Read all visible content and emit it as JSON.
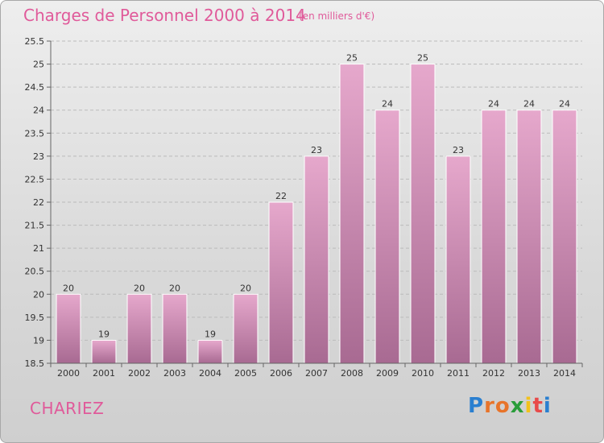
{
  "header": {
    "title": "Charges de Personnel 2000 à 2014",
    "subtitle": "(en milliers d'€)"
  },
  "footer": {
    "commune": "CHARIEZ",
    "logo": "Proxiti",
    "logo_colors": [
      "#2a7fd0",
      "#e8742a",
      "#e8742a",
      "#2a9d3a",
      "#f2c21d",
      "#e84a4a",
      "#2a7fd0"
    ]
  },
  "chart_data": {
    "type": "bar",
    "categories": [
      "2000",
      "2001",
      "2002",
      "2003",
      "2004",
      "2005",
      "2006",
      "2007",
      "2008",
      "2009",
      "2010",
      "2011",
      "2012",
      "2013",
      "2014"
    ],
    "values": [
      20,
      19,
      20,
      20,
      19,
      20,
      22,
      23,
      25,
      24,
      25,
      23,
      24,
      24,
      24
    ],
    "value_labels": [
      "20",
      "19",
      "20",
      "20",
      "19",
      "20",
      "22",
      "23",
      "25",
      "24",
      "25",
      "23",
      "24",
      "24",
      "24"
    ],
    "ylim": [
      18.5,
      25.5
    ],
    "yticks": [
      "18.5",
      "19",
      "19.5",
      "20",
      "20.5",
      "21",
      "21.5",
      "22",
      "22.5",
      "23",
      "23.5",
      "24",
      "24.5",
      "25",
      "25.5"
    ],
    "bar_color_top": "#e6a8cc",
    "bar_color_bottom": "#a86a92",
    "grid": true
  }
}
